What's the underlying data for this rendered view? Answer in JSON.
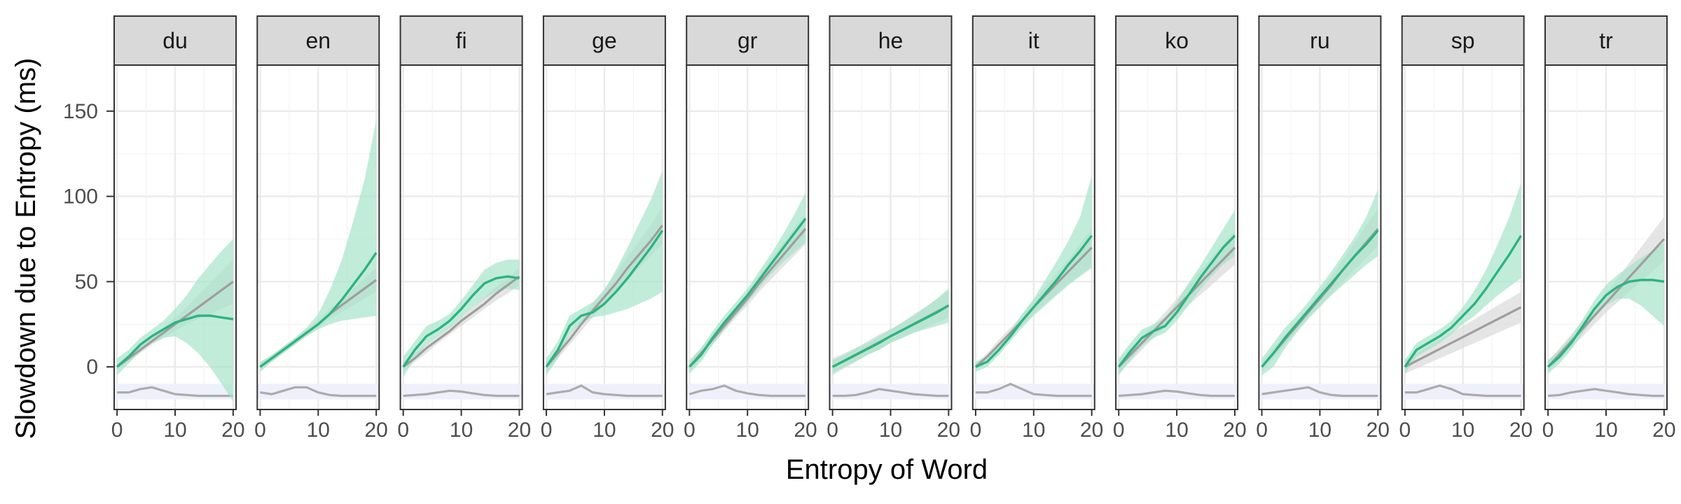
{
  "chart_data": {
    "type": "line",
    "xlabel": "Entropy of Word",
    "ylabel": "Slowdown due to Entropy (ms)",
    "xlim": [
      -0.5,
      20.5
    ],
    "ylim": [
      -25,
      177
    ],
    "xticks": [
      0,
      10,
      20
    ],
    "yticks": [
      0,
      50,
      100,
      150
    ],
    "grid": true,
    "legend": "none",
    "colors": {
      "smooth_line": "#2db382",
      "smooth_band": "#a7e4c9",
      "linear_line": "#9e9e9e",
      "linear_band": "#dcdcdc",
      "density_line": "#ababab",
      "density_band": "#eef0fb",
      "strip_fill": "#d9d9d9"
    },
    "x": [
      0,
      2,
      4,
      6,
      8,
      10,
      12,
      14,
      16,
      18,
      20
    ],
    "panels": [
      {
        "name": "du",
        "smooth": [
          0,
          6,
          13,
          18,
          22,
          26,
          28,
          30,
          30,
          29,
          28
        ],
        "smooth_lo": [
          -5,
          2,
          9,
          14,
          17,
          18,
          14,
          8,
          0,
          -10,
          -20
        ],
        "smooth_hi": [
          5,
          10,
          17,
          22,
          27,
          34,
          42,
          52,
          60,
          68,
          75
        ],
        "linear": [
          0,
          5,
          10,
          15,
          20,
          25,
          30,
          35,
          40,
          45,
          50
        ],
        "linear_lo": [
          -2,
          3,
          8,
          13,
          17,
          21,
          25,
          28,
          31,
          34,
          37
        ],
        "linear_hi": [
          2,
          7,
          12,
          17,
          23,
          29,
          35,
          42,
          49,
          56,
          63
        ],
        "density": [
          -15,
          -15,
          -13,
          -12,
          -14,
          -16,
          -16.5,
          -17,
          -17,
          -17,
          -17
        ]
      },
      {
        "name": "en",
        "smooth": [
          0,
          5,
          10,
          15,
          20,
          25,
          31,
          39,
          48,
          57,
          67
        ],
        "smooth_lo": [
          -3,
          3,
          8,
          13,
          18,
          22,
          25,
          27,
          28,
          29,
          30
        ],
        "smooth_hi": [
          3,
          7,
          12,
          17,
          23,
          31,
          45,
          62,
          85,
          110,
          145
        ],
        "linear": [
          0,
          5,
          10,
          15,
          20,
          25,
          31,
          36,
          41,
          46,
          51
        ],
        "linear_lo": [
          -2,
          3,
          8,
          13,
          18,
          23,
          28,
          32,
          36,
          40,
          44
        ],
        "linear_hi": [
          2,
          7,
          12,
          17,
          22,
          27,
          34,
          40,
          46,
          52,
          58
        ],
        "density": [
          -15,
          -16,
          -14,
          -12,
          -12,
          -15,
          -16.5,
          -17,
          -17,
          -17,
          -17
        ]
      },
      {
        "name": "fi",
        "smooth": [
          0,
          10,
          18,
          22,
          27,
          34,
          42,
          49,
          52,
          53,
          52
        ],
        "smooth_lo": [
          -6,
          5,
          13,
          18,
          23,
          29,
          35,
          40,
          44,
          46,
          45
        ],
        "smooth_hi": [
          6,
          15,
          24,
          27,
          31,
          39,
          48,
          57,
          61,
          63,
          63
        ],
        "linear": [
          0,
          5,
          11,
          16,
          21,
          27,
          32,
          37,
          43,
          48,
          53
        ],
        "linear_lo": [
          -3,
          3,
          8,
          14,
          19,
          24,
          29,
          34,
          39,
          43,
          48
        ],
        "linear_hi": [
          3,
          8,
          13,
          18,
          24,
          29,
          35,
          41,
          47,
          52,
          58
        ],
        "density": [
          -17,
          -16.5,
          -16,
          -15,
          -14,
          -14.5,
          -15.5,
          -16.5,
          -17,
          -17,
          -17
        ]
      },
      {
        "name": "ge",
        "smooth": [
          0,
          10,
          24,
          30,
          32,
          37,
          44,
          52,
          61,
          70,
          80
        ],
        "smooth_lo": [
          -5,
          5,
          19,
          26,
          29,
          30,
          32,
          34,
          37,
          40,
          44
        ],
        "smooth_hi": [
          5,
          15,
          30,
          34,
          38,
          45,
          57,
          70,
          84,
          98,
          115
        ],
        "linear": [
          0,
          8,
          16,
          25,
          33,
          41,
          49,
          58,
          66,
          74,
          83
        ],
        "linear_lo": [
          -3,
          5,
          13,
          21,
          29,
          36,
          43,
          51,
          58,
          65,
          72
        ],
        "linear_hi": [
          3,
          11,
          19,
          28,
          37,
          46,
          55,
          65,
          74,
          83,
          94
        ],
        "density": [
          -16,
          -15,
          -14,
          -11,
          -15,
          -16,
          -16.5,
          -17,
          -17,
          -17,
          -17
        ]
      },
      {
        "name": "gr",
        "smooth": [
          0,
          7,
          17,
          26,
          34,
          42,
          51,
          60,
          69,
          78,
          87
        ],
        "smooth_lo": [
          -4,
          3,
          13,
          22,
          30,
          38,
          46,
          54,
          61,
          67,
          73
        ],
        "smooth_hi": [
          4,
          11,
          21,
          30,
          38,
          46,
          56,
          66,
          77,
          89,
          102
        ],
        "linear": [
          0,
          8,
          16,
          24,
          32,
          40,
          49,
          57,
          65,
          73,
          81
        ],
        "linear_lo": [
          -3,
          5,
          13,
          21,
          29,
          36,
          44,
          51,
          58,
          65,
          72
        ],
        "linear_hi": [
          3,
          11,
          19,
          27,
          35,
          44,
          54,
          63,
          72,
          81,
          90
        ],
        "density": [
          -16,
          -14,
          -13,
          -11,
          -14,
          -15.5,
          -16.5,
          -17,
          -17,
          -17,
          -17
        ]
      },
      {
        "name": "he",
        "smooth": [
          0,
          3.5,
          7,
          10.5,
          14,
          18,
          21.5,
          25,
          28.5,
          32,
          36
        ],
        "smooth_lo": [
          -4,
          0,
          3,
          7,
          10,
          14,
          17,
          20,
          22,
          24,
          26
        ],
        "smooth_hi": [
          4,
          7,
          11,
          14,
          18,
          22,
          26,
          30,
          35,
          40,
          46
        ],
        "linear": [
          0,
          3.6,
          7.2,
          10.8,
          14.4,
          18,
          21.6,
          25.2,
          28.8,
          32.4,
          36
        ],
        "linear_lo": [
          -5,
          -1,
          3,
          7,
          10,
          14,
          17,
          20,
          23,
          26,
          29
        ],
        "linear_hi": [
          5,
          8,
          11,
          15,
          19,
          22,
          26,
          31,
          35,
          40,
          45
        ],
        "density": [
          -17,
          -17,
          -16.5,
          -15,
          -13,
          -14,
          -15,
          -16,
          -16.5,
          -17,
          -17
        ]
      },
      {
        "name": "it",
        "smooth": [
          0,
          3,
          10,
          18,
          27,
          35,
          43,
          51,
          60,
          68,
          77
        ],
        "smooth_lo": [
          -3,
          0,
          7,
          15,
          23,
          30,
          36,
          42,
          48,
          53,
          58
        ],
        "smooth_hi": [
          3,
          6,
          13,
          21,
          31,
          40,
          51,
          62,
          74,
          88,
          112
        ],
        "linear": [
          0,
          6,
          13,
          20,
          27,
          35,
          42,
          49,
          56,
          63,
          70
        ],
        "linear_lo": [
          -2,
          4,
          10,
          17,
          24,
          31,
          37,
          43,
          49,
          54,
          59
        ],
        "linear_hi": [
          2,
          8,
          16,
          23,
          30,
          39,
          47,
          55,
          63,
          72,
          81
        ],
        "density": [
          -15,
          -15,
          -13,
          -10,
          -13,
          -16,
          -16.5,
          -17,
          -17,
          -17,
          -17
        ]
      },
      {
        "name": "ko",
        "smooth": [
          0,
          9,
          17,
          21,
          24,
          32,
          42,
          52,
          61,
          70,
          77
        ],
        "smooth_lo": [
          -5,
          4,
          12,
          17,
          20,
          27,
          36,
          45,
          53,
          60,
          65
        ],
        "smooth_hi": [
          5,
          14,
          22,
          25,
          29,
          38,
          49,
          59,
          70,
          81,
          92
        ],
        "linear": [
          0,
          7,
          14,
          21,
          28,
          35,
          42,
          49,
          56,
          63,
          70
        ],
        "linear_lo": [
          -4,
          3,
          10,
          17,
          24,
          30,
          36,
          42,
          48,
          54,
          60
        ],
        "linear_hi": [
          4,
          11,
          18,
          25,
          32,
          40,
          48,
          56,
          64,
          72,
          80
        ],
        "density": [
          -17,
          -16.5,
          -16,
          -15,
          -14,
          -14.5,
          -15.5,
          -16.5,
          -17,
          -17,
          -17
        ]
      },
      {
        "name": "ru",
        "smooth": [
          0,
          8,
          17,
          25,
          33,
          41,
          49,
          57,
          65,
          72,
          80
        ],
        "smooth_lo": [
          -5,
          0,
          11,
          20,
          28,
          35,
          42,
          48,
          54,
          60,
          65
        ],
        "smooth_hi": [
          5,
          14,
          23,
          30,
          38,
          47,
          56,
          66,
          76,
          88,
          104
        ],
        "linear": [
          0,
          8,
          16,
          24,
          32,
          40,
          48,
          57,
          65,
          73,
          81
        ],
        "linear_lo": [
          -3,
          5,
          13,
          21,
          29,
          36,
          43,
          50,
          57,
          64,
          71
        ],
        "linear_hi": [
          3,
          11,
          19,
          27,
          35,
          44,
          53,
          63,
          73,
          83,
          93
        ],
        "density": [
          -16,
          -15,
          -14,
          -13,
          -12,
          -15,
          -16.5,
          -17,
          -17,
          -17,
          -17
        ]
      },
      {
        "name": "sp",
        "smooth": [
          0,
          10,
          14,
          18,
          23,
          30,
          37,
          46,
          56,
          66,
          77
        ],
        "smooth_lo": [
          -4,
          6,
          10,
          14,
          19,
          25,
          30,
          36,
          42,
          47,
          52
        ],
        "smooth_hi": [
          4,
          14,
          18,
          22,
          27,
          35,
          45,
          57,
          72,
          88,
          108
        ],
        "linear": [
          0,
          3.5,
          7,
          10.5,
          14,
          17.5,
          21,
          24.5,
          28,
          31.5,
          35
        ],
        "linear_lo": [
          -4,
          -1,
          2,
          5,
          8,
          11,
          14,
          17,
          20,
          23,
          26
        ],
        "linear_hi": [
          4,
          8,
          12,
          16,
          20,
          24,
          28,
          32,
          36,
          40,
          44
        ],
        "density": [
          -15,
          -15,
          -13,
          -11,
          -13,
          -16,
          -16.5,
          -17,
          -17,
          -17,
          -17
        ]
      },
      {
        "name": "tr",
        "smooth": [
          0,
          6,
          14,
          24,
          34,
          42,
          47,
          50,
          51,
          51,
          50
        ],
        "smooth_lo": [
          -4,
          2,
          10,
          20,
          29,
          36,
          40,
          40,
          36,
          30,
          24
        ],
        "smooth_hi": [
          4,
          10,
          18,
          28,
          39,
          48,
          54,
          59,
          64,
          68,
          73
        ],
        "linear": [
          0,
          7.5,
          15,
          22.5,
          30,
          37.5,
          45,
          52.5,
          60,
          67.5,
          75
        ],
        "linear_lo": [
          -3,
          4,
          11,
          18,
          25,
          32,
          38,
          44,
          50,
          56,
          62
        ],
        "linear_hi": [
          3,
          11,
          19,
          27,
          35,
          43,
          52,
          61,
          70,
          79,
          88
        ],
        "density": [
          -17,
          -16.5,
          -15,
          -14,
          -13,
          -14,
          -15,
          -16,
          -16.5,
          -17,
          -17
        ]
      }
    ]
  }
}
